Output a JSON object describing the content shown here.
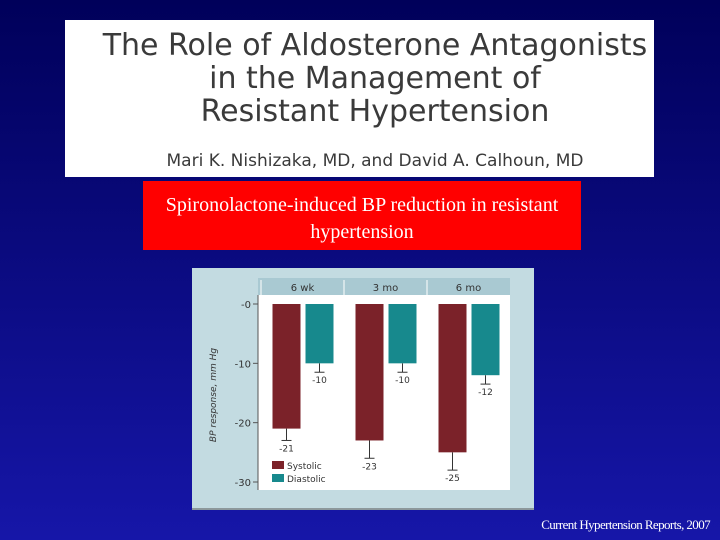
{
  "title_lines": [
    "The Role of Aldosterone Antagonists",
    "in the Management of",
    "Resistant Hypertension"
  ],
  "authors": "Mari K. Nishizaka, MD, and David A. Calhoun, MD",
  "caption": "Spironolactone-induced BP reduction   in resistant hypertension",
  "citation": "Current Hypertension Reports, 2007",
  "chart_data": {
    "type": "bar",
    "y_label": "BP response, mm Hg",
    "categories": [
      "6 wk",
      "3 mo",
      "6 mo"
    ],
    "series": [
      {
        "name": "Systolic",
        "color": "#7b2229",
        "values": [
          -21,
          -23,
          -25
        ],
        "errors": [
          2,
          3,
          3
        ]
      },
      {
        "name": "Diastolic",
        "color": "#17898d",
        "values": [
          -10,
          -10,
          -12
        ],
        "errors": [
          1.5,
          1.5,
          1.5
        ]
      }
    ],
    "ylim": [
      -30,
      0
    ],
    "yticks": [
      {
        "value": 0,
        "label": "-0"
      },
      -10,
      -20,
      -30
    ],
    "legend": "lower left"
  }
}
